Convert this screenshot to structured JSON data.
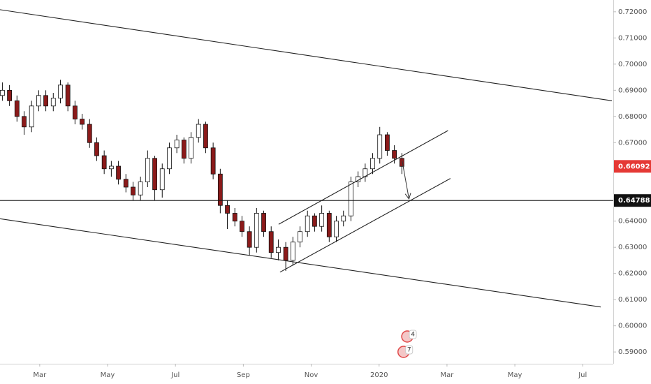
{
  "chart_data": {
    "type": "candlestick",
    "xlim": [
      0.83,
      18.9
    ],
    "xticks": [
      {
        "value": 2,
        "label": "Mar"
      },
      {
        "value": 4,
        "label": "May"
      },
      {
        "value": 6,
        "label": "Jul"
      },
      {
        "value": 8,
        "label": "Sep"
      },
      {
        "value": 10,
        "label": "Nov"
      },
      {
        "value": 12,
        "label": "2020"
      },
      {
        "value": 14,
        "label": "Mar"
      },
      {
        "value": 16,
        "label": "May"
      },
      {
        "value": 18,
        "label": "Jul"
      }
    ],
    "ylim": [
      0.5855,
      0.7245
    ],
    "yticks": [
      {
        "value": 0.72,
        "label": "0.72000"
      },
      {
        "value": 0.71,
        "label": "0.71000"
      },
      {
        "value": 0.7,
        "label": "0.70000"
      },
      {
        "value": 0.69,
        "label": "0.69000"
      },
      {
        "value": 0.68,
        "label": "0.68000"
      },
      {
        "value": 0.67,
        "label": "0.67000"
      },
      {
        "value": 0.64,
        "label": "0.64000"
      },
      {
        "value": 0.63,
        "label": "0.63000"
      },
      {
        "value": 0.62,
        "label": "0.62000"
      },
      {
        "value": 0.61,
        "label": "0.61000"
      },
      {
        "value": 0.6,
        "label": "0.60000"
      },
      {
        "value": 0.59,
        "label": "0.59000"
      }
    ],
    "up_color": "#ffffff",
    "down_color": "#8b1a1a",
    "x": [
      0.9,
      1.11,
      1.33,
      1.54,
      1.76,
      1.97,
      2.18,
      2.4,
      2.61,
      2.83,
      3.04,
      3.25,
      3.47,
      3.68,
      3.9,
      4.11,
      4.32,
      4.54,
      4.75,
      4.97,
      5.18,
      5.39,
      5.61,
      5.82,
      6.04,
      6.25,
      6.46,
      6.68,
      6.89,
      7.11,
      7.32,
      7.53,
      7.75,
      7.96,
      8.18,
      8.39,
      8.6,
      8.82,
      9.03,
      9.25,
      9.46,
      9.67,
      9.89,
      10.1,
      10.31,
      10.53,
      10.74,
      10.95,
      11.17,
      11.38,
      11.59,
      11.81,
      12.02,
      12.24,
      12.45,
      12.67
    ],
    "open": [
      0.688,
      0.69,
      0.686,
      0.68,
      0.676,
      0.684,
      0.688,
      0.684,
      0.687,
      0.692,
      0.684,
      0.679,
      0.677,
      0.67,
      0.665,
      0.66,
      0.661,
      0.656,
      0.653,
      0.65,
      0.655,
      0.664,
      0.652,
      0.66,
      0.668,
      0.671,
      0.664,
      0.672,
      0.677,
      0.668,
      0.658,
      0.646,
      0.643,
      0.64,
      0.636,
      0.63,
      0.643,
      0.636,
      0.628,
      0.63,
      0.625,
      0.632,
      0.636,
      0.642,
      0.638,
      0.643,
      0.634,
      0.64,
      0.642,
      0.655,
      0.657,
      0.66,
      0.664,
      0.673,
      0.667,
      0.664
    ],
    "high": [
      0.693,
      0.692,
      0.688,
      0.682,
      0.686,
      0.69,
      0.69,
      0.689,
      0.694,
      0.693,
      0.686,
      0.681,
      0.679,
      0.672,
      0.667,
      0.663,
      0.663,
      0.658,
      0.655,
      0.657,
      0.667,
      0.665,
      0.662,
      0.67,
      0.673,
      0.672,
      0.674,
      0.679,
      0.678,
      0.67,
      0.66,
      0.648,
      0.645,
      0.642,
      0.638,
      0.645,
      0.644,
      0.638,
      0.633,
      0.632,
      0.634,
      0.638,
      0.644,
      0.643,
      0.646,
      0.644,
      0.642,
      0.644,
      0.657,
      0.659,
      0.662,
      0.666,
      0.676,
      0.674,
      0.669,
      0.666
    ],
    "low": [
      0.686,
      0.684,
      0.678,
      0.673,
      0.674,
      0.682,
      0.682,
      0.682,
      0.685,
      0.682,
      0.677,
      0.675,
      0.668,
      0.663,
      0.658,
      0.657,
      0.654,
      0.651,
      0.648,
      0.648,
      0.653,
      0.648,
      0.649,
      0.658,
      0.666,
      0.662,
      0.662,
      0.67,
      0.666,
      0.656,
      0.643,
      0.637,
      0.638,
      0.634,
      0.627,
      0.628,
      0.634,
      0.626,
      0.625,
      0.621,
      0.623,
      0.63,
      0.634,
      0.636,
      0.636,
      0.632,
      0.632,
      0.638,
      0.64,
      0.653,
      0.655,
      0.658,
      0.662,
      0.665,
      0.662,
      0.658
    ],
    "close": [
      0.69,
      0.686,
      0.68,
      0.676,
      0.684,
      0.688,
      0.684,
      0.687,
      0.692,
      0.684,
      0.679,
      0.677,
      0.67,
      0.665,
      0.66,
      0.661,
      0.656,
      0.653,
      0.65,
      0.655,
      0.664,
      0.652,
      0.66,
      0.668,
      0.671,
      0.664,
      0.672,
      0.677,
      0.668,
      0.658,
      0.646,
      0.643,
      0.64,
      0.636,
      0.63,
      0.643,
      0.636,
      0.628,
      0.63,
      0.625,
      0.632,
      0.636,
      0.642,
      0.638,
      0.643,
      0.634,
      0.64,
      0.642,
      0.655,
      0.657,
      0.66,
      0.664,
      0.673,
      0.667,
      0.664,
      0.66092
    ],
    "last_price": {
      "value": 0.66092,
      "label": "0.66092",
      "color": "#e53935"
    },
    "level": {
      "value": 0.64788,
      "label": "0.64788"
    },
    "trend_lines": [
      {
        "x": [
          0.83,
          18.86
        ],
        "y": [
          0.7208,
          0.686
        ]
      },
      {
        "x": [
          0.83,
          18.53
        ],
        "y": [
          0.6409,
          0.6072
        ]
      },
      {
        "x": [
          9.04,
          14.03
        ],
        "y": [
          0.6388,
          0.6746
        ]
      },
      {
        "x": [
          9.08,
          14.1
        ],
        "y": [
          0.6205,
          0.6563
        ]
      }
    ],
    "arrow": {
      "x": [
        12.68,
        12.88
      ],
      "y": [
        0.663,
        0.6485
      ]
    },
    "events": [
      {
        "x": 12.83,
        "label": "4"
      },
      {
        "x": 12.72,
        "label": "7"
      }
    ]
  }
}
